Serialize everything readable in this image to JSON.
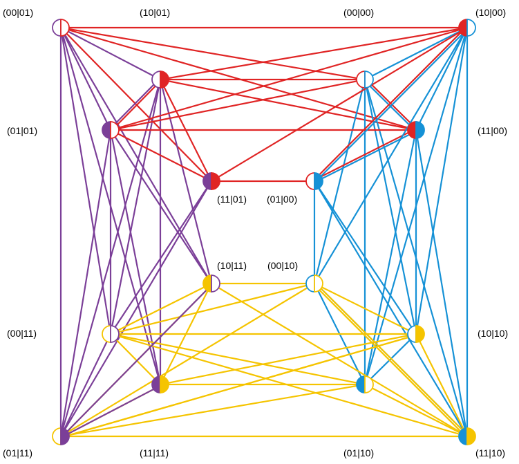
{
  "colors": {
    "red": "#e02424",
    "purple": "#7b3f98",
    "blue": "#1591d6",
    "yellow": "#f5c400",
    "background": "#ffffff"
  },
  "nodes": [
    {
      "id": "n1",
      "label": "(00|01)",
      "left": "purple",
      "right": "white",
      "left_filled": false,
      "right_filled": false,
      "ring_left": "purple",
      "ring_right": "red"
    },
    {
      "id": "n2",
      "label": "(10|00)",
      "left": "red",
      "right": "white",
      "left_filled": true,
      "right_filled": false,
      "ring_left": "red",
      "ring_right": "blue"
    },
    {
      "id": "n3",
      "label": "(10|01)",
      "left": "purple",
      "right": "red",
      "left_filled": false,
      "right_filled": true,
      "ring_left": "purple",
      "ring_right": "red"
    },
    {
      "id": "n4",
      "label": "(00|00)",
      "left": "red",
      "right": "blue",
      "left_filled": false,
      "right_filled": false,
      "ring_left": "red",
      "ring_right": "blue"
    },
    {
      "id": "n5",
      "label": "(01|01)",
      "left": "purple",
      "right": "red",
      "left_filled": true,
      "right_filled": false,
      "ring_left": "purple",
      "ring_right": "red"
    },
    {
      "id": "n6",
      "label": "(11|00)",
      "left": "red",
      "right": "blue",
      "left_filled": true,
      "right_filled": true,
      "ring_left": "red",
      "ring_right": "blue"
    },
    {
      "id": "n7",
      "label": "(11|01)",
      "left": "purple",
      "right": "red",
      "left_filled": true,
      "right_filled": true,
      "ring_left": "purple",
      "ring_right": "red"
    },
    {
      "id": "n8",
      "label": "(01|00)",
      "left": "red",
      "right": "blue",
      "left_filled": false,
      "right_filled": true,
      "ring_left": "red",
      "ring_right": "blue"
    },
    {
      "id": "n9",
      "label": "(10|11)",
      "left": "yellow",
      "right": "purple",
      "left_filled": true,
      "right_filled": false,
      "ring_left": "yellow",
      "ring_right": "purple"
    },
    {
      "id": "n10",
      "label": "(00|10)",
      "left": "blue",
      "right": "yellow",
      "left_filled": false,
      "right_filled": false,
      "ring_left": "blue",
      "ring_right": "yellow"
    },
    {
      "id": "n11",
      "label": "(00|11)",
      "left": "yellow",
      "right": "purple",
      "left_filled": false,
      "right_filled": false,
      "ring_left": "yellow",
      "ring_right": "purple"
    },
    {
      "id": "n12",
      "label": "(10|10)",
      "left": "blue",
      "right": "yellow",
      "left_filled": false,
      "right_filled": true,
      "ring_left": "blue",
      "ring_right": "yellow"
    },
    {
      "id": "n13",
      "label": "(11|11)",
      "left": "purple",
      "right": "yellow",
      "left_filled": true,
      "right_filled": true,
      "ring_left": "purple",
      "ring_right": "yellow"
    },
    {
      "id": "n14",
      "label": "(01|10)",
      "left": "blue",
      "right": "yellow",
      "left_filled": true,
      "right_filled": false,
      "ring_left": "blue",
      "ring_right": "yellow"
    },
    {
      "id": "n15",
      "label": "(01|11)",
      "left": "yellow",
      "right": "purple",
      "left_filled": false,
      "right_filled": true,
      "ring_left": "yellow",
      "ring_right": "purple"
    },
    {
      "id": "n16",
      "label": "(11|10)",
      "left": "blue",
      "right": "yellow",
      "left_filled": true,
      "right_filled": true,
      "ring_left": "blue",
      "ring_right": "yellow"
    }
  ],
  "edges": [
    {
      "from": "n1",
      "to": "n2",
      "color": "red"
    },
    {
      "from": "n1",
      "to": "n4",
      "color": "red"
    },
    {
      "from": "n1",
      "to": "n6",
      "color": "red"
    },
    {
      "from": "n1",
      "to": "n7",
      "color": "red"
    },
    {
      "from": "n1",
      "to": "n3",
      "color": "purple"
    },
    {
      "from": "n1",
      "to": "n5",
      "color": "purple"
    },
    {
      "from": "n1",
      "to": "n9",
      "color": "purple"
    },
    {
      "from": "n1",
      "to": "n11",
      "color": "purple"
    },
    {
      "from": "n1",
      "to": "n13",
      "color": "purple"
    },
    {
      "from": "n1",
      "to": "n15",
      "color": "purple"
    },
    {
      "from": "n3",
      "to": "n4",
      "color": "red"
    },
    {
      "from": "n3",
      "to": "n5",
      "color": "red"
    },
    {
      "from": "n3",
      "to": "n6",
      "color": "red"
    },
    {
      "from": "n3",
      "to": "n2",
      "color": "red"
    },
    {
      "from": "n3",
      "to": "n7",
      "color": "red"
    },
    {
      "from": "n3",
      "to": "n5",
      "color": "purple"
    },
    {
      "from": "n3",
      "to": "n9",
      "color": "purple"
    },
    {
      "from": "n3",
      "to": "n11",
      "color": "purple"
    },
    {
      "from": "n3",
      "to": "n13",
      "color": "purple"
    },
    {
      "from": "n3",
      "to": "n15",
      "color": "purple"
    },
    {
      "from": "n4",
      "to": "n5",
      "color": "red"
    },
    {
      "from": "n4",
      "to": "n6",
      "color": "red"
    },
    {
      "from": "n4",
      "to": "n2",
      "color": "blue"
    },
    {
      "from": "n4",
      "to": "n6",
      "color": "blue"
    },
    {
      "from": "n4",
      "to": "n10",
      "color": "blue"
    },
    {
      "from": "n4",
      "to": "n12",
      "color": "blue"
    },
    {
      "from": "n4",
      "to": "n14",
      "color": "blue"
    },
    {
      "from": "n4",
      "to": "n16",
      "color": "blue"
    },
    {
      "from": "n5",
      "to": "n6",
      "color": "red"
    },
    {
      "from": "n5",
      "to": "n7",
      "color": "red"
    },
    {
      "from": "n5",
      "to": "n2",
      "color": "red"
    },
    {
      "from": "n5",
      "to": "n11",
      "color": "purple"
    },
    {
      "from": "n5",
      "to": "n9",
      "color": "purple"
    },
    {
      "from": "n5",
      "to": "n13",
      "color": "purple"
    },
    {
      "from": "n5",
      "to": "n15",
      "color": "purple"
    },
    {
      "from": "n7",
      "to": "n8",
      "color": "red"
    },
    {
      "from": "n7",
      "to": "n2",
      "color": "red"
    },
    {
      "from": "n7",
      "to": "n11",
      "color": "purple"
    },
    {
      "from": "n7",
      "to": "n15",
      "color": "purple"
    },
    {
      "from": "n8",
      "to": "n2",
      "color": "red"
    },
    {
      "from": "n8",
      "to": "n6",
      "color": "red"
    },
    {
      "from": "n8",
      "to": "n2",
      "color": "blue"
    },
    {
      "from": "n8",
      "to": "n6",
      "color": "blue"
    },
    {
      "from": "n8",
      "to": "n10",
      "color": "blue"
    },
    {
      "from": "n8",
      "to": "n12",
      "color": "blue"
    },
    {
      "from": "n8",
      "to": "n16",
      "color": "blue"
    },
    {
      "from": "n2",
      "to": "n6",
      "color": "blue"
    },
    {
      "from": "n2",
      "to": "n10",
      "color": "blue"
    },
    {
      "from": "n2",
      "to": "n12",
      "color": "blue"
    },
    {
      "from": "n2",
      "to": "n14",
      "color": "blue"
    },
    {
      "from": "n2",
      "to": "n16",
      "color": "blue"
    },
    {
      "from": "n6",
      "to": "n12",
      "color": "blue"
    },
    {
      "from": "n6",
      "to": "n14",
      "color": "blue"
    },
    {
      "from": "n6",
      "to": "n16",
      "color": "blue"
    },
    {
      "from": "n10",
      "to": "n14",
      "color": "blue"
    },
    {
      "from": "n10",
      "to": "n16",
      "color": "blue"
    },
    {
      "from": "n12",
      "to": "n14",
      "color": "blue"
    },
    {
      "from": "n9",
      "to": "n10",
      "color": "yellow"
    },
    {
      "from": "n9",
      "to": "n11",
      "color": "yellow"
    },
    {
      "from": "n9",
      "to": "n13",
      "color": "yellow"
    },
    {
      "from": "n9",
      "to": "n15",
      "color": "yellow"
    },
    {
      "from": "n9",
      "to": "n16",
      "color": "yellow"
    },
    {
      "from": "n10",
      "to": "n11",
      "color": "yellow"
    },
    {
      "from": "n10",
      "to": "n12",
      "color": "yellow"
    },
    {
      "from": "n10",
      "to": "n15",
      "color": "yellow"
    },
    {
      "from": "n10",
      "to": "n16",
      "color": "yellow"
    },
    {
      "from": "n11",
      "to": "n12",
      "color": "yellow"
    },
    {
      "from": "n11",
      "to": "n13",
      "color": "yellow"
    },
    {
      "from": "n11",
      "to": "n14",
      "color": "yellow"
    },
    {
      "from": "n11",
      "to": "n16",
      "color": "yellow"
    },
    {
      "from": "n12",
      "to": "n13",
      "color": "yellow"
    },
    {
      "from": "n12",
      "to": "n15",
      "color": "yellow"
    },
    {
      "from": "n13",
      "to": "n14",
      "color": "yellow"
    },
    {
      "from": "n13",
      "to": "n15",
      "color": "yellow"
    },
    {
      "from": "n14",
      "to": "n16",
      "color": "yellow"
    },
    {
      "from": "n14",
      "to": "n15",
      "color": "yellow"
    },
    {
      "from": "n15",
      "to": "n16",
      "color": "yellow"
    },
    {
      "from": "n15",
      "to": "n12",
      "color": "yellow"
    },
    {
      "from": "n15",
      "to": "n11",
      "color": "purple"
    },
    {
      "from": "n15",
      "to": "n13",
      "color": "purple"
    },
    {
      "from": "n15",
      "to": "n9",
      "color": "purple"
    },
    {
      "from": "n16",
      "to": "n12",
      "color": "yellow"
    },
    {
      "from": "n16",
      "to": "n10",
      "color": "yellow"
    }
  ]
}
